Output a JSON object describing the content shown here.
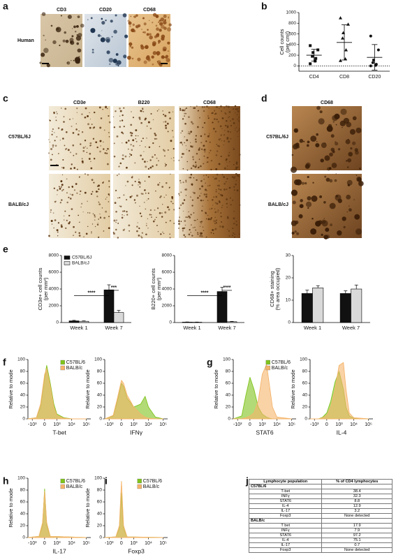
{
  "panels": [
    "a",
    "b",
    "c",
    "d",
    "e",
    "f",
    "g",
    "h",
    "i",
    "j"
  ],
  "a": {
    "columns": [
      "CD3",
      "CD20",
      "CD68"
    ],
    "row": "Human"
  },
  "c": {
    "columns": [
      "CD3e",
      "B220",
      "CD68"
    ],
    "rows": [
      "C57BL/6J",
      "BALB/cJ"
    ]
  },
  "d": {
    "title": "CD68",
    "rows": [
      "C57BL/6J",
      "BALB/cJ"
    ]
  },
  "charts": [
    {
      "type": "scatter",
      "ylabel": [
        "Cell counts",
        "(per cm²)"
      ],
      "categories": [
        "CD4",
        "CD8",
        "CD20"
      ],
      "markers": [
        "square",
        "triangle",
        "circle"
      ],
      "points": [
        [
          40,
          90,
          140,
          180,
          250,
          300,
          380
        ],
        [
          100,
          130,
          300,
          520,
          620,
          780,
          900
        ],
        [
          0,
          10,
          30,
          60,
          110,
          300,
          560
        ]
      ],
      "means": [
        200,
        440,
        160
      ],
      "errors": [
        110,
        330,
        240
      ],
      "reference_line": 0,
      "ylim": [
        -100,
        1000
      ],
      "yticks": [
        0,
        200,
        400,
        600,
        800,
        1000
      ]
    },
    {
      "type": "bar",
      "ylabel": [
        "CD3e+ cell counts",
        "(per mm²)"
      ],
      "categories": [
        "Week 1",
        "Week 7"
      ],
      "series": [
        {
          "name": "C57BL/6J",
          "color": "#111111",
          "values": [
            200,
            3900
          ],
          "errors": [
            60,
            600
          ]
        },
        {
          "name": "BALB/cJ",
          "color": "#d9d9d9",
          "values": [
            150,
            1200
          ],
          "errors": [
            50,
            250
          ]
        }
      ],
      "ylim": [
        0,
        8000
      ],
      "yticks": [
        0,
        2000,
        4000,
        6000,
        8000
      ],
      "legend": true,
      "annotations": [
        "****",
        "***"
      ]
    },
    {
      "type": "bar",
      "ylabel": [
        "B220+ cell counts",
        "(per mm²)"
      ],
      "categories": [
        "Week 1",
        "Week 7"
      ],
      "series": [
        {
          "name": "C57BL/6J",
          "color": "#111111",
          "values": [
            50,
            3700
          ],
          "errors": [
            20,
            500
          ]
        },
        {
          "name": "BALB/cJ",
          "color": "#d9d9d9",
          "values": [
            40,
            100
          ],
          "errors": [
            20,
            40
          ]
        }
      ],
      "ylim": [
        0,
        8000
      ],
      "yticks": [
        0,
        2000,
        4000,
        6000,
        8000
      ],
      "legend": false,
      "annotations": [
        "****",
        "****"
      ]
    },
    {
      "type": "bar",
      "ylabel": [
        "CD68+ staining",
        "(% area occupied)"
      ],
      "categories": [
        "Week 1",
        "Week 7"
      ],
      "series": [
        {
          "name": "C57BL/6J",
          "color": "#111111",
          "values": [
            13,
            13
          ],
          "errors": [
            1.5,
            1.2
          ]
        },
        {
          "name": "BALB/cJ",
          "color": "#d9d9d9",
          "values": [
            15.5,
            15
          ],
          "errors": [
            1,
            1.8
          ]
        }
      ],
      "ylim": [
        0,
        30
      ],
      "yticks": [
        0,
        10,
        20,
        30
      ],
      "legend": false,
      "annotations": []
    },
    {
      "type": "area",
      "xlabel": "T-bet",
      "ylabel": "Relative to mode",
      "legend": true,
      "x": [
        -2000,
        -500,
        -200,
        0,
        100,
        300,
        600,
        1000,
        3000,
        10000,
        100000
      ],
      "series": [
        {
          "name": "C57BL/6",
          "color": "#7fc31c",
          "values": [
            0,
            2,
            20,
            70,
            90,
            60,
            25,
            8,
            2,
            0,
            0
          ]
        },
        {
          "name": "BALB/c",
          "color": "#f5b46b",
          "values": [
            0,
            2,
            25,
            75,
            85,
            55,
            20,
            6,
            1,
            0,
            0
          ]
        }
      ],
      "xlim": [
        -2000,
        200000
      ],
      "xticks": [
        {
          "value": -1000,
          "label": "-10³"
        },
        0,
        {
          "value": 1000,
          "label": "10³"
        },
        {
          "value": 10000,
          "label": "10⁴"
        },
        {
          "value": 100000,
          "label": "10⁵"
        }
      ],
      "ylim": [
        0,
        100
      ],
      "yticks": [
        0,
        20,
        40,
        60,
        80,
        100
      ]
    },
    {
      "type": "area",
      "xlabel": "IFNγ",
      "ylabel": "Relative to mode",
      "legend": false,
      "x": [
        -2000,
        -500,
        -200,
        0,
        100,
        300,
        1000,
        3000,
        6000,
        10000,
        30000,
        100000
      ],
      "series": [
        {
          "name": "C57BL/6",
          "color": "#7fc31c",
          "values": [
            0,
            5,
            30,
            60,
            55,
            35,
            20,
            25,
            38,
            20,
            3,
            0
          ]
        },
        {
          "name": "BALB/c",
          "color": "#f5b46b",
          "values": [
            0,
            6,
            35,
            65,
            60,
            40,
            20,
            8,
            3,
            1,
            0,
            0
          ]
        }
      ],
      "xlim": [
        -2000,
        200000
      ],
      "xticks": [
        {
          "value": -1000,
          "label": "-10³"
        },
        0,
        {
          "value": 1000,
          "label": "10³"
        },
        {
          "value": 10000,
          "label": "10⁴"
        },
        {
          "value": 100000,
          "label": "10⁵"
        }
      ],
      "ylim": [
        0,
        100
      ],
      "yticks": [
        0,
        20,
        40,
        60,
        80,
        100
      ]
    },
    {
      "type": "area",
      "xlabel": "STAT6",
      "ylabel": "Relative to mode",
      "legend": true,
      "x": [
        -2000,
        -500,
        -200,
        0,
        200,
        500,
        1000,
        2000,
        3000,
        5000,
        10000,
        100000
      ],
      "series": [
        {
          "name": "C57BL/6",
          "color": "#7fc31c",
          "values": [
            0,
            5,
            40,
            70,
            50,
            20,
            8,
            3,
            1,
            0,
            0,
            0
          ]
        },
        {
          "name": "BALB/c",
          "color": "#f5b46b",
          "values": [
            0,
            0,
            2,
            5,
            10,
            30,
            75,
            92,
            60,
            20,
            3,
            0
          ]
        }
      ],
      "xlim": [
        -2000,
        200000
      ],
      "xticks": [
        {
          "value": -1000,
          "label": "-10³"
        },
        0,
        {
          "value": 1000,
          "label": "10³"
        },
        {
          "value": 10000,
          "label": "10⁴"
        },
        {
          "value": 100000,
          "label": "10⁵"
        }
      ],
      "ylim": [
        0,
        100
      ],
      "yticks": [
        0,
        20,
        40,
        60,
        80,
        100
      ]
    },
    {
      "type": "area",
      "xlabel": "IL-4",
      "ylabel": "Relative to mode",
      "legend": false,
      "x": [
        -2000,
        -500,
        -200,
        0,
        200,
        500,
        1000,
        2000,
        3000,
        5000,
        10000,
        100000
      ],
      "series": [
        {
          "name": "C57BL/6",
          "color": "#7fc31c",
          "values": [
            0,
            0,
            3,
            10,
            30,
            62,
            80,
            50,
            20,
            5,
            1,
            0
          ]
        },
        {
          "name": "BALB/c",
          "color": "#f5b46b",
          "values": [
            0,
            0,
            2,
            6,
            20,
            50,
            90,
            95,
            50,
            10,
            2,
            0
          ]
        }
      ],
      "xlim": [
        -2000,
        200000
      ],
      "xticks": [
        {
          "value": -1000,
          "label": "-10³"
        },
        0,
        {
          "value": 1000,
          "label": "10³"
        },
        {
          "value": 10000,
          "label": "10⁴"
        },
        {
          "value": 100000,
          "label": "10⁵"
        }
      ],
      "ylim": [
        0,
        100
      ],
      "yticks": [
        0,
        20,
        40,
        60,
        80,
        100
      ]
    },
    {
      "type": "area",
      "xlabel": "IL-17",
      "ylabel": "Relative to mode",
      "legend": true,
      "x": [
        -2000,
        -300,
        -100,
        0,
        100,
        300,
        100000
      ],
      "series": [
        {
          "name": "C57BL/6",
          "color": "#7fc31c",
          "values": [
            0,
            2,
            20,
            82,
            20,
            2,
            0
          ]
        },
        {
          "name": "BALB/c",
          "color": "#f5b46b",
          "values": [
            0,
            2,
            25,
            78,
            25,
            2,
            0
          ]
        }
      ],
      "xlim": [
        -2000,
        200000
      ],
      "xticks": [
        {
          "value": -1000,
          "label": "-10³"
        },
        0,
        {
          "value": 1000,
          "label": "10³"
        },
        {
          "value": 10000,
          "label": "10⁴"
        },
        {
          "value": 100000,
          "label": "10⁵"
        }
      ],
      "ylim": [
        0,
        100
      ],
      "yticks": [
        0,
        20,
        40,
        60,
        80,
        100
      ]
    },
    {
      "type": "area",
      "xlabel": "Foxp3",
      "ylabel": "Relative to mode",
      "legend": true,
      "x": [
        -2000,
        -300,
        -100,
        0,
        100,
        300,
        100000
      ],
      "series": [
        {
          "name": "C57BL/6",
          "color": "#7fc31c",
          "values": [
            0,
            1,
            15,
            75,
            15,
            1,
            0
          ]
        },
        {
          "name": "BALB/c",
          "color": "#f5b46b",
          "values": [
            0,
            1,
            20,
            95,
            20,
            1,
            0
          ]
        }
      ],
      "xlim": [
        -2000,
        200000
      ],
      "xticks": [
        {
          "value": -1000,
          "label": "-10³"
        },
        0,
        {
          "value": 1000,
          "label": "10³"
        },
        {
          "value": 10000,
          "label": "10⁴"
        },
        {
          "value": 100000,
          "label": "10⁵"
        }
      ],
      "ylim": [
        0,
        100
      ],
      "yticks": [
        0,
        20,
        40,
        60,
        80,
        100
      ]
    }
  ],
  "table": {
    "header": [
      "Lymphocyte population",
      "% of CD4 lymphocytes"
    ],
    "groups": [
      {
        "name": "C57BL/6",
        "rows": [
          [
            "T-bet",
            38.4
          ],
          [
            "INFγ",
            32.3
          ],
          [
            "STAT6",
            8.8
          ],
          [
            "IL-4",
            12.9
          ],
          [
            "IL-17",
            3.2
          ],
          [
            "Foxp3",
            "None detected"
          ]
        ]
      },
      {
        "name": "BALB/c",
        "rows": [
          [
            "T bet",
            17.9
          ],
          [
            "INFγ",
            7.9
          ],
          [
            "STAT6",
            97.2
          ],
          [
            "IL-4",
            75.1
          ],
          [
            "IL-17",
            0.7
          ],
          [
            "Foxp3",
            "None detected"
          ]
        ]
      }
    ]
  }
}
